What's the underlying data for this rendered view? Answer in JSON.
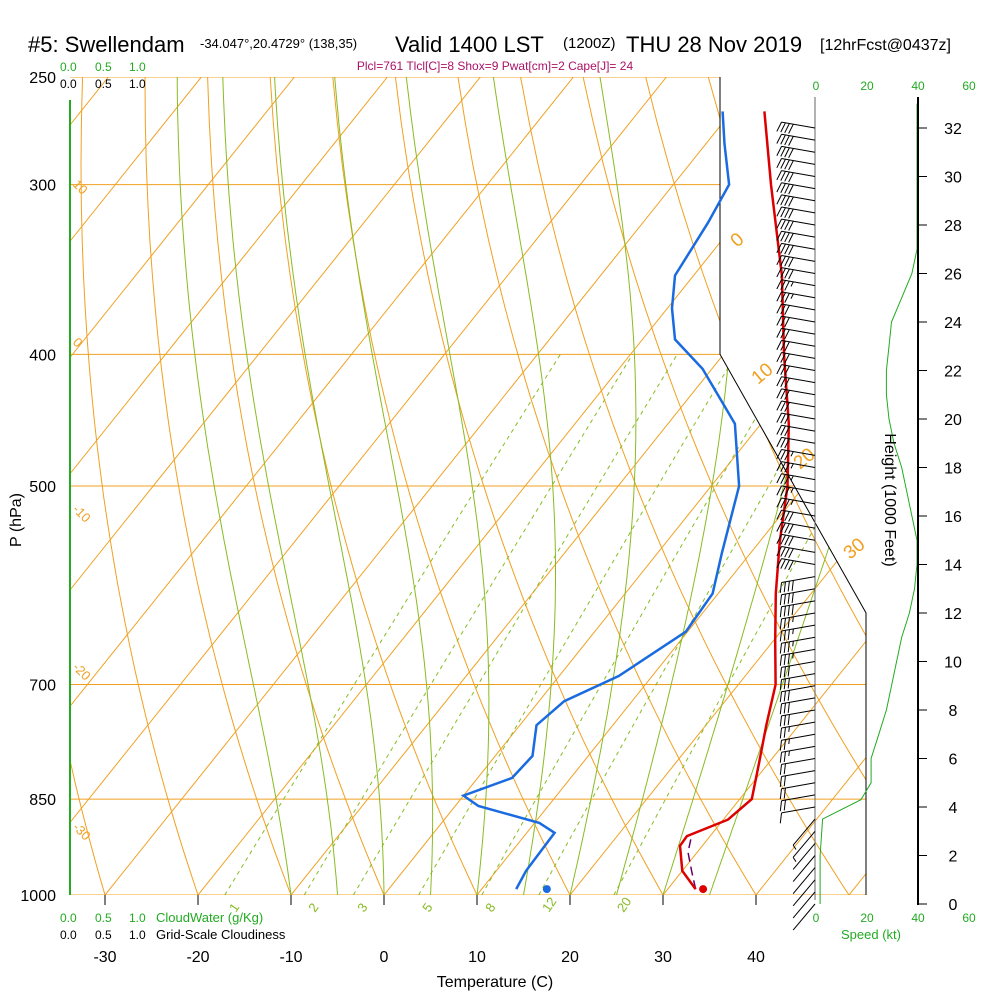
{
  "header": {
    "station": "#5: Swellendam",
    "coords": "-34.047°,20.4729° (138,35)",
    "valid": "Valid 1400 LST",
    "valid_z": "(1200Z)",
    "date": "THU 28 Nov 2019",
    "fcst": "[12hrFcst@0437z]",
    "params": "Plcl=761 Tlcl[C]=8 Shox=9 Pwat[cm]=2 Cape[J]= 24"
  },
  "legends": {
    "cloudwater_label": "CloudWater (g/Kg)",
    "cloudiness_label": "Grid-Scale Cloudiness",
    "speed_label": "Speed (kt)",
    "scale_top_green": [
      "0.0",
      "0.5",
      "1.0"
    ],
    "scale_top_black": [
      "0.0",
      "0.5",
      "1.0"
    ],
    "scale_bot_green": [
      "0.0",
      "0.5",
      "1.0"
    ],
    "scale_bot_black": [
      "0.0",
      "0.5",
      "1.0"
    ],
    "speed_ticks_top": [
      "0",
      "20",
      "40",
      "60"
    ],
    "speed_ticks_bottom": [
      "0",
      "20",
      "40",
      "60"
    ]
  },
  "colors": {
    "temperature": "#dd0000",
    "dewpoint": "#1a6be0",
    "isotherm": "#f0a020",
    "dry_adiabat": "#f0a020",
    "moist_adiabat": "#88bb22",
    "mixing_ratio": "#88bb22",
    "wind_speed": "#22aa22",
    "parcel": "#660066"
  },
  "chart_data": {
    "type": "skew-t log-p",
    "xlabel": "Temperature (C)",
    "ylabel": "P (hPa)",
    "ylabel_right": "Height (1000 Feet)",
    "x_ticks": [
      -30,
      -20,
      -10,
      0,
      10,
      20,
      30,
      40
    ],
    "p_ticks": [
      250,
      300,
      400,
      500,
      700,
      850,
      1000
    ],
    "height_ticks": [
      0,
      2,
      4,
      6,
      8,
      10,
      12,
      14,
      16,
      18,
      20,
      22,
      24,
      26,
      28,
      30,
      32
    ],
    "isotherm_labels": [
      "10",
      "0",
      "-10",
      "-20",
      "-30"
    ],
    "adiabat_labels": [
      "0",
      "10",
      "20",
      "30"
    ],
    "mixing_ratio_labels": [
      "1",
      "2",
      "3",
      "5",
      "8",
      "12",
      "20"
    ],
    "temperature": [
      {
        "p": 990,
        "t": 33.0
      },
      {
        "p": 960,
        "t": 30.0
      },
      {
        "p": 920,
        "t": 27.6
      },
      {
        "p": 905,
        "t": 27.5
      },
      {
        "p": 880,
        "t": 30.5
      },
      {
        "p": 850,
        "t": 31.3
      },
      {
        "p": 800,
        "t": 29.0
      },
      {
        "p": 750,
        "t": 26.5
      },
      {
        "p": 700,
        "t": 24.0
      },
      {
        "p": 650,
        "t": 20.2
      },
      {
        "p": 600,
        "t": 16.2
      },
      {
        "p": 550,
        "t": 12.2
      },
      {
        "p": 500,
        "t": 8.2
      },
      {
        "p": 450,
        "t": 3.0
      },
      {
        "p": 400,
        "t": -3.5
      },
      {
        "p": 350,
        "t": -10.5
      },
      {
        "p": 300,
        "t": -19.5
      },
      {
        "p": 265,
        "t": -26.5
      }
    ],
    "dewpoint": [
      {
        "p": 990,
        "t": 13.7
      },
      {
        "p": 960,
        "t": 13.2
      },
      {
        "p": 900,
        "t": 13.0
      },
      {
        "p": 885,
        "t": 10.5
      },
      {
        "p": 860,
        "t": 2.5
      },
      {
        "p": 845,
        "t": 0.0
      },
      {
        "p": 820,
        "t": 3.7
      },
      {
        "p": 790,
        "t": 4.0
      },
      {
        "p": 750,
        "t": 1.8
      },
      {
        "p": 720,
        "t": 2.7
      },
      {
        "p": 690,
        "t": 6.4
      },
      {
        "p": 640,
        "t": 9.8
      },
      {
        "p": 600,
        "t": 9.4
      },
      {
        "p": 560,
        "t": 6.9
      },
      {
        "p": 500,
        "t": 3.0
      },
      {
        "p": 450,
        "t": -2.8
      },
      {
        "p": 410,
        "t": -11.0
      },
      {
        "p": 390,
        "t": -16.5
      },
      {
        "p": 370,
        "t": -19.5
      },
      {
        "p": 350,
        "t": -22.0
      },
      {
        "p": 320,
        "t": -23.0
      },
      {
        "p": 300,
        "t": -24.0
      },
      {
        "p": 280,
        "t": -28.0
      },
      {
        "p": 265,
        "t": -31.0
      }
    ],
    "parcel": [
      {
        "p": 990,
        "t": 33.0
      },
      {
        "p": 960,
        "t": 31.0
      },
      {
        "p": 930,
        "t": 29.0
      },
      {
        "p": 910,
        "t": 28.2
      }
    ],
    "surface_temperature": 33.8,
    "surface_dewpoint": 17.0,
    "wind_speed_profile": [
      {
        "h": 0,
        "s": 2
      },
      {
        "h": 2,
        "s": 2
      },
      {
        "h": 3.5,
        "s": 3
      },
      {
        "h": 4.3,
        "s": 18
      },
      {
        "h": 5,
        "s": 22
      },
      {
        "h": 6,
        "s": 22
      },
      {
        "h": 7,
        "s": 25
      },
      {
        "h": 8,
        "s": 28
      },
      {
        "h": 9,
        "s": 30
      },
      {
        "h": 10,
        "s": 32
      },
      {
        "h": 11,
        "s": 34
      },
      {
        "h": 12,
        "s": 37
      },
      {
        "h": 13,
        "s": 39
      },
      {
        "h": 14,
        "s": 40
      },
      {
        "h": 15,
        "s": 40
      },
      {
        "h": 16,
        "s": 38
      },
      {
        "h": 17,
        "s": 36
      },
      {
        "h": 18,
        "s": 34
      },
      {
        "h": 19,
        "s": 31
      },
      {
        "h": 20,
        "s": 29
      },
      {
        "h": 21,
        "s": 28
      },
      {
        "h": 22,
        "s": 28
      },
      {
        "h": 23,
        "s": 29
      },
      {
        "h": 24,
        "s": 30
      },
      {
        "h": 25,
        "s": 34
      },
      {
        "h": 26,
        "s": 38
      },
      {
        "h": 27,
        "s": 40
      },
      {
        "h": 28,
        "s": 40
      },
      {
        "h": 30,
        "s": 40
      },
      {
        "h": 32,
        "s": 40
      },
      {
        "h": 33,
        "s": 40
      }
    ]
  }
}
